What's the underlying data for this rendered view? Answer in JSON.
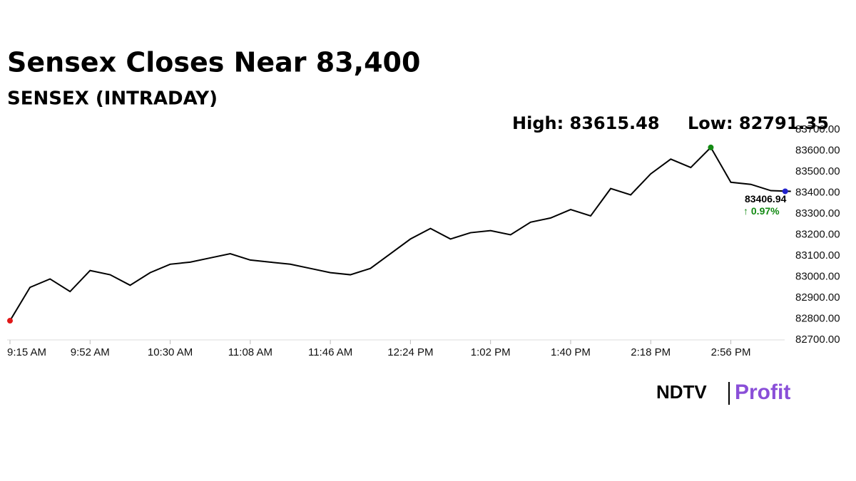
{
  "chart_data": {
    "type": "line",
    "title": "Sensex Closes Near 83,400",
    "subtitle": "SENSEX (INTRADAY)",
    "high_label": "High: 83615.48",
    "low_label": "Low: 82791.35",
    "change_label": "↑ 0.97%",
    "brand": [
      "NDTV",
      "Profit"
    ],
    "categories": [
      "9:15 AM",
      null,
      null,
      null,
      "9:52 AM",
      null,
      null,
      null,
      "10:30 AM",
      null,
      null,
      null,
      "11:08 AM",
      null,
      null,
      null,
      "11:46 AM",
      null,
      null,
      null,
      "12:24 PM",
      null,
      null,
      null,
      "1:02 PM",
      null,
      null,
      null,
      "1:40 PM",
      null,
      null,
      null,
      "2:18 PM",
      null,
      null,
      null,
      "2:56 PM",
      null,
      null,
      null
    ],
    "series": [
      {
        "name": "SENSEX",
        "color": "#000000",
        "values": [
          82791.35,
          82950,
          82990,
          82930,
          83030,
          83010,
          82960,
          83020,
          83060,
          83070,
          83090,
          83110,
          83080,
          83070,
          83060,
          83040,
          83020,
          83010,
          83040,
          83110,
          83180,
          83230,
          83180,
          83210,
          83220,
          83200,
          83260,
          83280,
          83320,
          83290,
          83420,
          83390,
          83490,
          83560,
          83520,
          83615.48,
          83450,
          83440,
          83410,
          83406.94
        ]
      }
    ],
    "ylim": [
      82700,
      83700
    ],
    "yticks": [
      {
        "value": 82700,
        "label": "82700.00"
      },
      {
        "value": 82800,
        "label": "82800.00"
      },
      {
        "value": 82900,
        "label": "82900.00"
      },
      {
        "value": 83000,
        "label": "83000.00"
      },
      {
        "value": 83100,
        "label": "83100.00"
      },
      {
        "value": 83200,
        "label": "83200.00"
      },
      {
        "value": 83300,
        "label": "83300.00"
      },
      {
        "value": 83400,
        "label": "83400.00"
      },
      {
        "value": 83500,
        "label": "83500.00"
      },
      {
        "value": 83600,
        "label": "83600.00"
      },
      {
        "value": 83700,
        "label": "83700.00"
      }
    ],
    "high_color": "#138a13",
    "low_color": "#e01818",
    "last_color": "#2222cc",
    "change_color": "#138a13"
  }
}
